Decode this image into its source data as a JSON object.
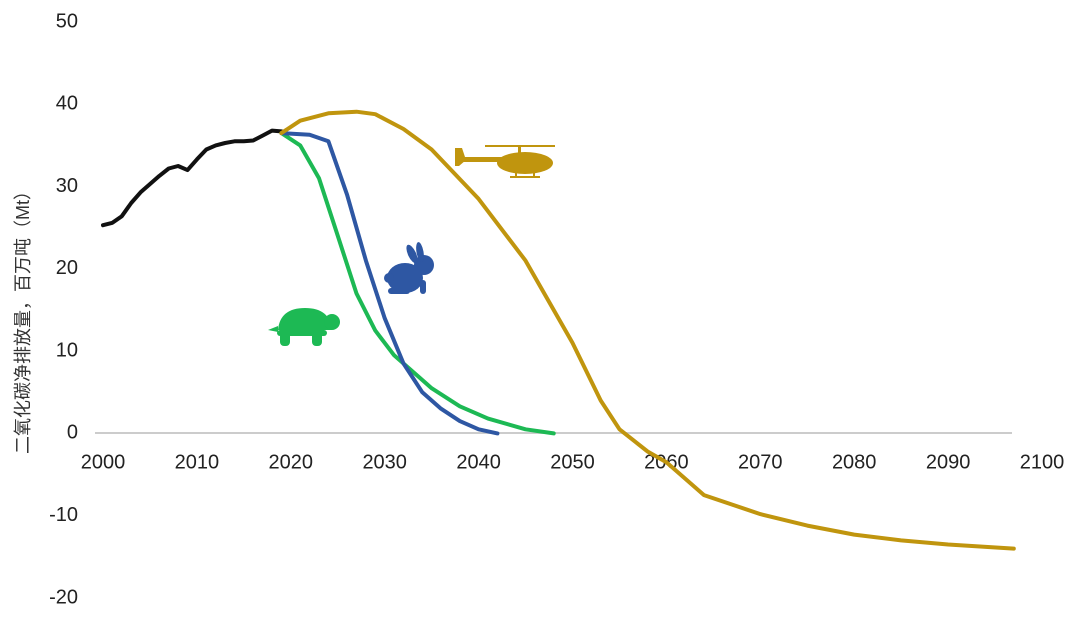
{
  "chart_data": {
    "type": "line",
    "y_label": "二氧化碳净排放量，百万吨（Mt）",
    "xlim": [
      2000,
      2100
    ],
    "xticks": [
      2000,
      2010,
      2020,
      2030,
      2040,
      2050,
      2060,
      2070,
      2080,
      2090,
      2100
    ],
    "ylim": [
      -20,
      50
    ],
    "yticks": [
      -20,
      -10,
      0,
      10,
      20,
      30,
      40,
      50
    ],
    "grid": false,
    "series": [
      {
        "color": "#111111",
        "x": [
          2000,
          2001,
          2002,
          2003,
          2004,
          2005,
          2006,
          2007,
          2008,
          2009,
          2010,
          2011,
          2012,
          2013,
          2014,
          2015,
          2016,
          2017,
          2018,
          2019
        ],
        "values": [
          25.3,
          25.6,
          26.4,
          28,
          29.3,
          30.3,
          31.3,
          32.2,
          32.5,
          32,
          33.3,
          34.5,
          35,
          35.3,
          35.5,
          35.5,
          35.6,
          36.2,
          36.8,
          36.7
        ]
      },
      {
        "color": "#1db954",
        "x": [
          2019,
          2021,
          2023,
          2025,
          2027,
          2029,
          2031,
          2033,
          2035,
          2038,
          2041,
          2045,
          2048
        ],
        "values": [
          36.5,
          35,
          31,
          24,
          17,
          12.5,
          9.5,
          7.5,
          5.5,
          3.3,
          1.8,
          0.5,
          0
        ]
      },
      {
        "color": "#2e57a3",
        "x": [
          2019,
          2022,
          2024,
          2026,
          2028,
          2030,
          2032,
          2034,
          2036,
          2038,
          2040,
          2042
        ],
        "values": [
          36.5,
          36.3,
          35.5,
          29,
          21,
          14,
          8.5,
          5,
          3,
          1.5,
          0.5,
          0
        ]
      },
      {
        "color": "#c0950e",
        "x": [
          2019,
          2021,
          2024,
          2027,
          2029,
          2032,
          2035,
          2040,
          2045,
          2050,
          2053,
          2055,
          2058,
          2060,
          2064,
          2070,
          2075,
          2080,
          2085,
          2090,
          2097
        ],
        "values": [
          36.5,
          38,
          38.9,
          39.1,
          38.8,
          37,
          34.5,
          28.5,
          21,
          11,
          4,
          0.5,
          -2.2,
          -3.5,
          -7.5,
          -9.8,
          -11.2,
          -12.3,
          -13,
          -13.5,
          -14
        ]
      }
    ]
  }
}
